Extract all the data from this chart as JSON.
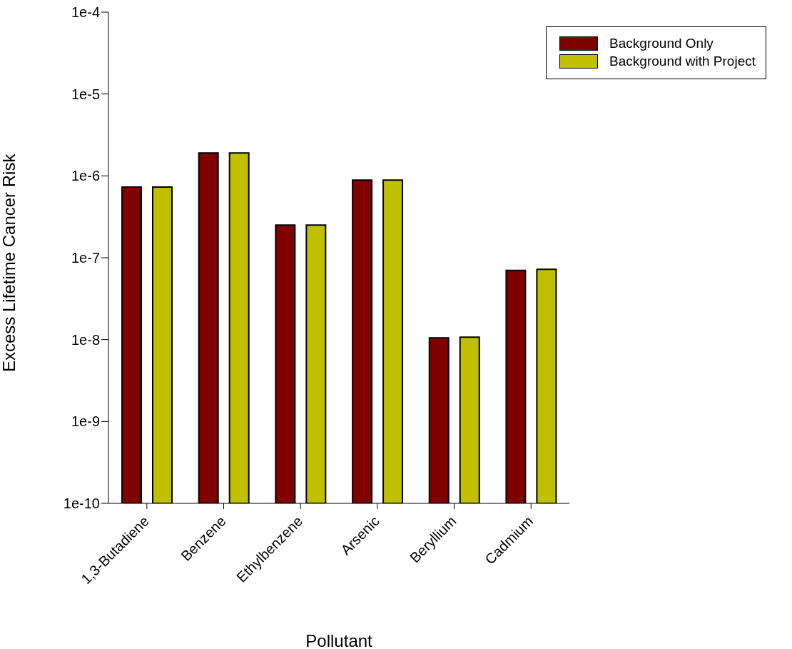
{
  "chart_data": {
    "type": "bar",
    "xlabel": "Pollutant",
    "ylabel": "Excess Lifetime Cancer Risk",
    "categories": [
      "1,3-Butadiene",
      "Benzene",
      "Ethylbenzene",
      "Arsenic",
      "Beryllium",
      "Cadmium"
    ],
    "series": [
      {
        "name": "Background Only",
        "color": "#800000",
        "values": [
          7.3e-07,
          1.9e-06,
          2.5e-07,
          8.9e-07,
          1.05e-08,
          7e-08
        ]
      },
      {
        "name": "Background with Project",
        "color": "#c0c000",
        "values": [
          7.3e-07,
          1.9e-06,
          2.5e-07,
          8.9e-07,
          1.07e-08,
          7.2e-08
        ]
      }
    ],
    "log": "y",
    "ylim": [
      1e-10,
      0.0001
    ],
    "yticks": [
      {
        "value": 1e-10,
        "label": "1e-10"
      },
      {
        "value": 1e-09,
        "label": "1e-9"
      },
      {
        "value": 1e-08,
        "label": "1e-8"
      },
      {
        "value": 1e-07,
        "label": "1e-7"
      },
      {
        "value": 1e-06,
        "label": "1e-6"
      },
      {
        "value": 1e-05,
        "label": "1e-5"
      },
      {
        "value": 0.0001,
        "label": "1e-4"
      }
    ],
    "grid": false,
    "legend": "top right"
  }
}
